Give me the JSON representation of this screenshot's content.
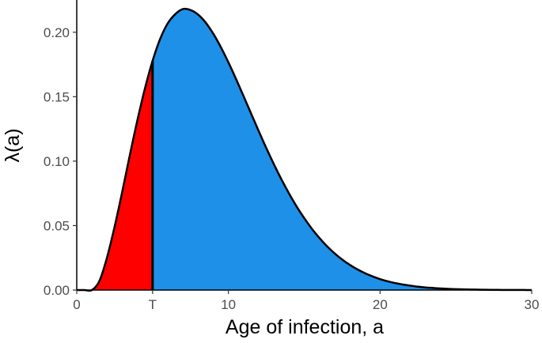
{
  "chart_data": {
    "type": "area",
    "title": "",
    "xlabel": "Age of infection,   a",
    "ylabel": "λ(a)",
    "xlim": [
      0,
      30
    ],
    "ylim": [
      0,
      0.225
    ],
    "grid": false,
    "x_ticks": [
      {
        "value": 0,
        "label": "0"
      },
      {
        "value": 5,
        "label": "T"
      },
      {
        "value": 10,
        "label": "10"
      },
      {
        "value": 20,
        "label": "20"
      },
      {
        "value": 30,
        "label": "30"
      }
    ],
    "y_ticks": [
      {
        "value": 0.0,
        "label": "0.00"
      },
      {
        "value": 0.05,
        "label": "0.05"
      },
      {
        "value": 0.1,
        "label": "0.10"
      },
      {
        "value": 0.15,
        "label": "0.15"
      },
      {
        "value": 0.2,
        "label": "0.20"
      }
    ],
    "threshold_T": 5,
    "x": [
      0,
      0.5,
      1,
      1.5,
      2,
      2.5,
      3,
      3.5,
      4,
      4.5,
      5,
      5.5,
      6,
      6.5,
      7,
      7.5,
      8,
      8.5,
      9,
      9.5,
      10,
      10.5,
      11,
      11.5,
      12,
      12.5,
      13,
      13.5,
      14,
      14.5,
      15,
      15.5,
      16,
      16.5,
      17,
      17.5,
      18,
      18.5,
      19,
      19.5,
      20,
      20.5,
      21,
      21.5,
      22,
      22.5,
      23,
      23.5,
      24,
      24.5,
      25,
      25.5,
      26,
      26.5,
      27,
      27.5,
      28,
      28.5,
      29,
      29.5,
      30
    ],
    "series": [
      {
        "values": [
          0,
          0,
          0,
          0.0072,
          0.0254,
          0.0493,
          0.0763,
          0.1047,
          0.1318,
          0.1565,
          0.1778,
          0.1948,
          0.2069,
          0.2141,
          0.218,
          0.2172,
          0.2137,
          0.2075,
          0.1989,
          0.1885,
          0.1766,
          0.1638,
          0.1504,
          0.1368,
          0.1233,
          0.1101,
          0.0976,
          0.0858,
          0.0749,
          0.0648,
          0.0558,
          0.0476,
          0.0404,
          0.034,
          0.0285,
          0.0237,
          0.0196,
          0.0161,
          0.0131,
          0.0106,
          0.0085,
          0.0068,
          0.0054,
          0.0043,
          0.0034,
          0.0026,
          0.002,
          0.0016,
          0.0012,
          0.0009,
          0.0007,
          0.0005,
          0.0004,
          0.0003,
          0.0002,
          0.00015,
          0.0001,
          8e-05,
          6e-05,
          4e-05,
          3e-05
        ]
      }
    ],
    "fill_colors": {
      "before_T": "#ff0000",
      "after_T": "#1e90e8"
    },
    "line_color": "#000000"
  }
}
